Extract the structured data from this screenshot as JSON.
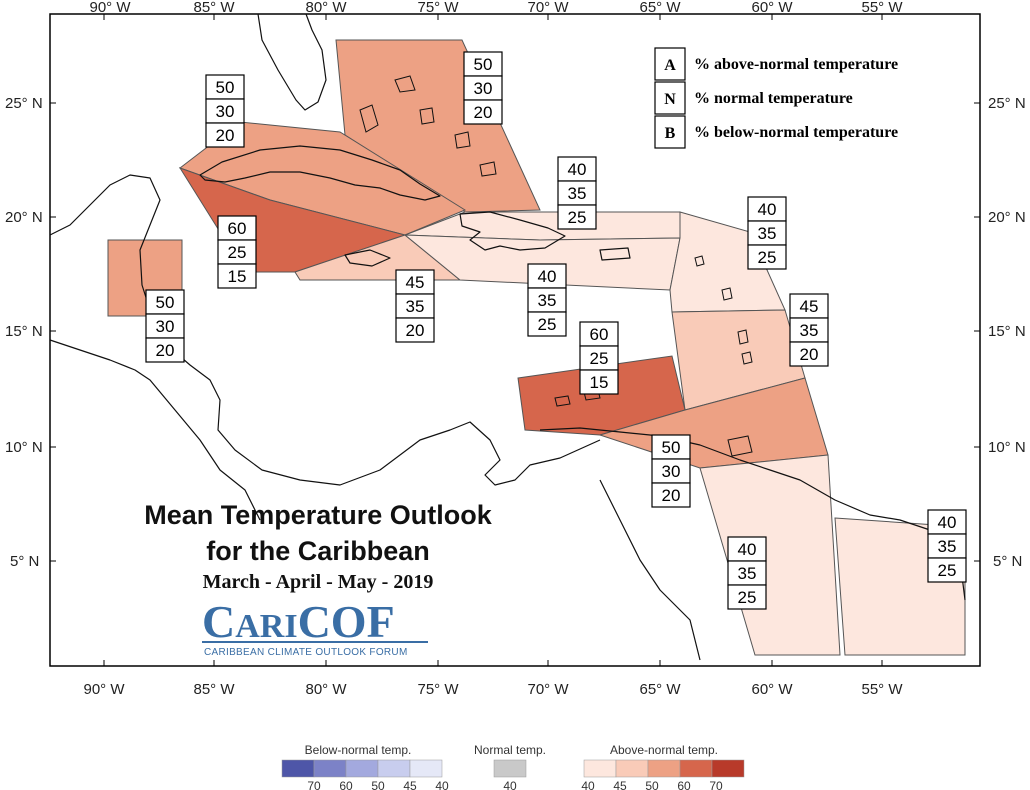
{
  "axes": {
    "lon_labels": [
      "90° W",
      "85° W",
      "80° W",
      "75° W",
      "70° W",
      "65° W",
      "60° W",
      "55° W"
    ],
    "lat_labels": [
      "25° N",
      "20° N",
      "15° N",
      "10° N",
      "5° N"
    ]
  },
  "legend": {
    "items": [
      {
        "key": "A",
        "text": "% above-normal temperature"
      },
      {
        "key": "N",
        "text": "% normal temperature"
      },
      {
        "key": "B",
        "text": "% below-normal temperature"
      }
    ]
  },
  "title": {
    "line1": "Mean Temperature Outlook",
    "line2": "for the Caribbean",
    "period": "March - April - May - 2019"
  },
  "logo": {
    "name": "CARICOF",
    "subtitle": "CARIBBEAN CLIMATE OUTLOOK FORUM"
  },
  "colors": {
    "above_40": "#fde7de",
    "above_45": "#f9cbb8",
    "above_50": "#eda184",
    "above_60": "#d6664c",
    "above_70": "#b83a2a",
    "normal": "#c9c9c9",
    "below_40": "#e5e8f7",
    "below_45": "#c8cdee",
    "below_50": "#a3a9de",
    "below_60": "#7c82c7",
    "below_70": "#4e56a8"
  },
  "probability_boxes": [
    {
      "region": "bahamas",
      "above": "50",
      "normal": "30",
      "below": "20"
    },
    {
      "region": "cuba",
      "above": "50",
      "normal": "30",
      "below": "20"
    },
    {
      "region": "hispaniola-north",
      "above": "40",
      "normal": "35",
      "below": "25"
    },
    {
      "region": "cayman-jamaica-west",
      "above": "60",
      "normal": "25",
      "below": "15"
    },
    {
      "region": "jamaica",
      "above": "45",
      "normal": "35",
      "below": "20"
    },
    {
      "region": "belize",
      "above": "50",
      "normal": "30",
      "below": "20"
    },
    {
      "region": "hispaniola-south-pr",
      "above": "40",
      "normal": "35",
      "below": "25"
    },
    {
      "region": "leeward-islands",
      "above": "40",
      "normal": "35",
      "below": "25"
    },
    {
      "region": "windward-islands",
      "above": "45",
      "normal": "35",
      "below": "20"
    },
    {
      "region": "abc-islands",
      "above": "60",
      "normal": "25",
      "below": "15"
    },
    {
      "region": "trinidad-tobago",
      "above": "50",
      "normal": "30",
      "below": "20"
    },
    {
      "region": "guyana",
      "above": "40",
      "normal": "35",
      "below": "25"
    },
    {
      "region": "suriname-fr-guiana",
      "above": "40",
      "normal": "35",
      "below": "25"
    }
  ],
  "color_scale": {
    "below_title": "Below-normal temp.",
    "normal_title": "Normal temp.",
    "above_title": "Above-normal temp.",
    "below_ticks": [
      "70",
      "60",
      "50",
      "45",
      "40"
    ],
    "normal_ticks": [
      "40"
    ],
    "above_ticks": [
      "40",
      "45",
      "50",
      "60",
      "70"
    ]
  }
}
